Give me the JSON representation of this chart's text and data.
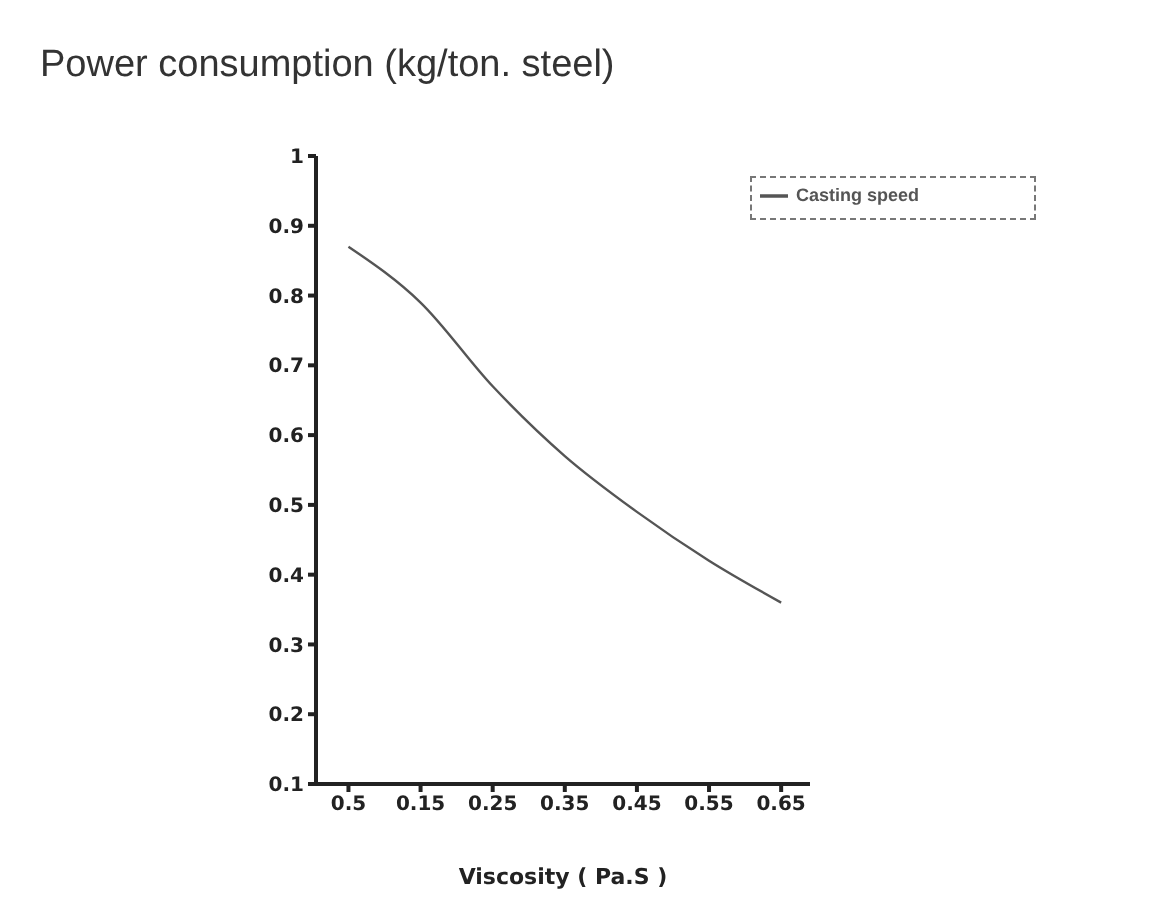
{
  "chart_data": {
    "type": "line",
    "title": "Power consumption (kg/ton. steel)",
    "xlabel": "Viscosity ( Pa.S )",
    "categories": [
      "0.5",
      "0.15",
      "0.25",
      "0.35",
      "0.45",
      "0.55",
      "0.65"
    ],
    "series": [
      {
        "name": "Casting speed",
        "color": "#555555",
        "values": [
          0.87,
          0.79,
          0.67,
          0.57,
          0.49,
          0.42,
          0.36
        ]
      }
    ],
    "ylim": [
      0.1,
      1
    ],
    "yticks": [
      0.1,
      0.2,
      0.3,
      0.4,
      0.5,
      0.6,
      0.7,
      0.8,
      0.9,
      1
    ],
    "legend": "top right",
    "marker": "none",
    "line_style": "solid"
  }
}
